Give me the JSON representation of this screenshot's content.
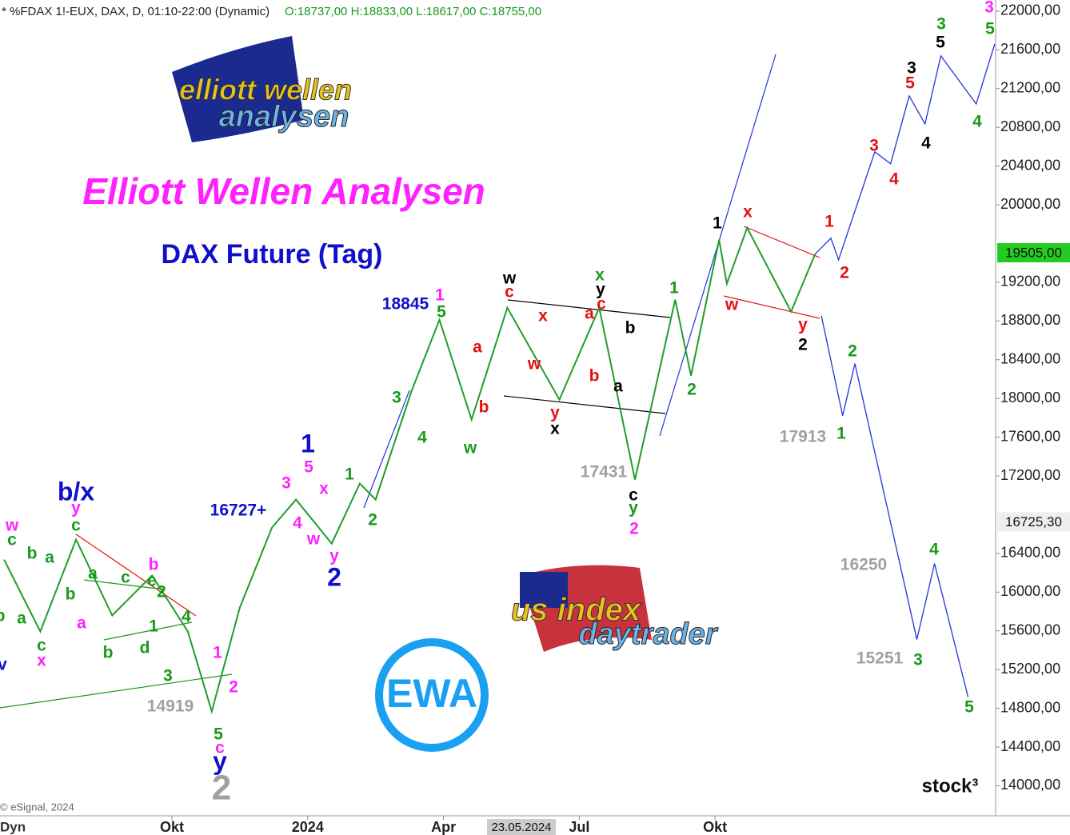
{
  "chart_data": {
    "type": "line",
    "header": {
      "symbol": "* %FDAX 1!-EUX, DAX, D, 01:10-22:00 (Dynamic)",
      "ohlc": "O:18737,00 H:18833,00 L:18617,00 C:18755,00"
    },
    "title": "Elliott Wellen Analysen",
    "subtitle": "DAX Future (Tag)",
    "logos": [
      "elliott wellen",
      "analysen",
      "us index",
      "daytrader",
      "EWA",
      "stock³"
    ],
    "footer": "© eSignal, 2024",
    "footer_left": "Dyn",
    "crosshair_date": "23.05.2024",
    "xlim": [
      -0.8,
      21.2
    ],
    "ylim": [
      13690,
      22115
    ],
    "grid": false,
    "xticks": [
      {
        "value": 3,
        "label": "Okt"
      },
      {
        "value": 6,
        "label": "2024"
      },
      {
        "value": 9,
        "label": "Apr"
      },
      {
        "value": 12,
        "label": "Jul"
      },
      {
        "value": 15,
        "label": "Okt"
      }
    ],
    "yticks": [
      {
        "value": 14000,
        "label": "14000,00"
      },
      {
        "value": 14400,
        "label": "14400,00"
      },
      {
        "value": 14800,
        "label": "14800,00"
      },
      {
        "value": 15200,
        "label": "15200,00"
      },
      {
        "value": 15600,
        "label": "15600,00"
      },
      {
        "value": 16000,
        "label": "16000,00"
      },
      {
        "value": 16400,
        "label": "16400,00"
      },
      {
        "value": 17200,
        "label": "17200,00"
      },
      {
        "value": 17600,
        "label": "17600,00"
      },
      {
        "value": 18000,
        "label": "18000,00"
      },
      {
        "value": 18400,
        "label": "18400,00"
      },
      {
        "value": 18800,
        "label": "18800,00"
      },
      {
        "value": 19200,
        "label": "19200,00"
      },
      {
        "value": 20000,
        "label": "20000,00"
      },
      {
        "value": 20400,
        "label": "20400,00"
      },
      {
        "value": 20800,
        "label": "20800,00"
      },
      {
        "value": 21200,
        "label": "21200,00"
      },
      {
        "value": 21600,
        "label": "21600,00"
      },
      {
        "value": 22000,
        "label": "22000,00"
      }
    ],
    "price_tags": [
      {
        "value": 19505,
        "label": "19505,00",
        "color": "#22cc22"
      },
      {
        "value": 16725.3,
        "label": "16725,30",
        "color": "#eeeeee"
      }
    ],
    "series": [
      {
        "color": "#1f9e2a",
        "x": [
          -0.71,
          0.09,
          0.88,
          1.68,
          2.56,
          3.35,
          3.88,
          4.5,
          5.21,
          5.74,
          6.53,
          7.15,
          7.5,
          8.29,
          8.91,
          9.62,
          10.41,
          11.56,
          12.44,
          13.23,
          14.12,
          14.47,
          15.09,
          15.26,
          15.71,
          16.68,
          17.21
        ],
        "values": [
          16336,
          15593,
          16543,
          15759,
          16171,
          15593,
          14768,
          15841,
          16667,
          16956,
          16502,
          17121,
          16956,
          18071,
          18813,
          17782,
          18937,
          17988,
          18937,
          17162,
          19020,
          18235,
          19639,
          19185,
          19763,
          18896,
          19490
        ]
      },
      {
        "color": "#2233dd",
        "x": [
          17.21,
          17.56,
          17.73,
          18.53,
          18.88,
          19.29,
          19.64,
          19.99,
          20.77,
          21.18
        ],
        "values": [
          19490,
          19655,
          19432,
          20547,
          20423,
          21125,
          20836,
          21538,
          21042,
          21661
        ]
      },
      {
        "color": "#2233dd",
        "x": [
          17.35,
          17.82,
          18.09,
          19.46,
          19.85,
          20.59
        ],
        "values": [
          18854,
          17822,
          18359,
          15511,
          16295,
          14917
        ]
      }
    ],
    "annotations": [
      "w",
      "c",
      "b",
      "a",
      "b/x",
      "y",
      "c",
      "b",
      "a",
      "c",
      "b",
      "e",
      "2",
      "a",
      "a",
      "b",
      "c",
      "x",
      "v",
      "1",
      "4",
      "b",
      "d",
      "3",
      "1",
      "2",
      "14919",
      "5",
      "c",
      "y",
      "2",
      "1",
      "5",
      "3",
      "x",
      "4",
      "w",
      "y",
      "2",
      "16727+",
      "1",
      "2",
      "3",
      "4",
      "18845",
      "1",
      "5",
      "a",
      "b",
      "w",
      "w",
      "c",
      "x",
      "w",
      "y",
      "x",
      "a",
      "b",
      "x",
      "y",
      "c",
      "b",
      "a",
      "17431",
      "c",
      "y",
      "2",
      "1",
      "2",
      "1",
      "x",
      "w",
      "y",
      "2",
      "1",
      "2",
      "17913",
      "1",
      "2",
      "3",
      "4",
      "3",
      "5",
      "4",
      "3",
      "5",
      "3",
      "5",
      "4",
      "16250",
      "4",
      "15251",
      "3",
      "5"
    ]
  }
}
